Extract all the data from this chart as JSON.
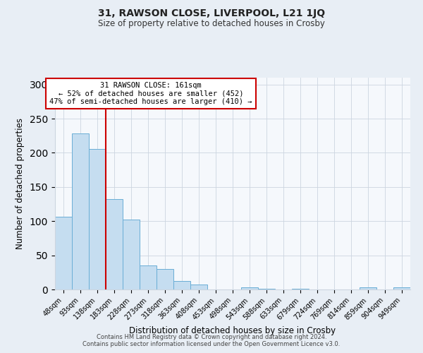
{
  "title": "31, RAWSON CLOSE, LIVERPOOL, L21 1JQ",
  "subtitle": "Size of property relative to detached houses in Crosby",
  "xlabel": "Distribution of detached houses by size in Crosby",
  "ylabel": "Number of detached properties",
  "bar_labels": [
    "48sqm",
    "93sqm",
    "138sqm",
    "183sqm",
    "228sqm",
    "273sqm",
    "318sqm",
    "363sqm",
    "408sqm",
    "453sqm",
    "498sqm",
    "543sqm",
    "588sqm",
    "633sqm",
    "679sqm",
    "724sqm",
    "769sqm",
    "814sqm",
    "859sqm",
    "904sqm",
    "949sqm"
  ],
  "bar_values": [
    106,
    228,
    206,
    132,
    102,
    35,
    30,
    12,
    7,
    0,
    0,
    3,
    1,
    0,
    1,
    0,
    0,
    0,
    3,
    0,
    3
  ],
  "bar_color": "#c5ddf0",
  "bar_edge_color": "#6aaed6",
  "vline_color": "#cc0000",
  "annotation_title": "31 RAWSON CLOSE: 161sqm",
  "annotation_line1": "← 52% of detached houses are smaller (452)",
  "annotation_line2": "47% of semi-detached houses are larger (410) →",
  "annotation_box_color": "#cc0000",
  "ylim": [
    0,
    310
  ],
  "yticks": [
    0,
    50,
    100,
    150,
    200,
    250,
    300
  ],
  "footer1": "Contains HM Land Registry data © Crown copyright and database right 2024.",
  "footer2": "Contains public sector information licensed under the Open Government Licence v3.0.",
  "bg_color": "#e8eef5",
  "plot_bg_color": "#f5f8fc",
  "grid_color": "#ccd5e0"
}
